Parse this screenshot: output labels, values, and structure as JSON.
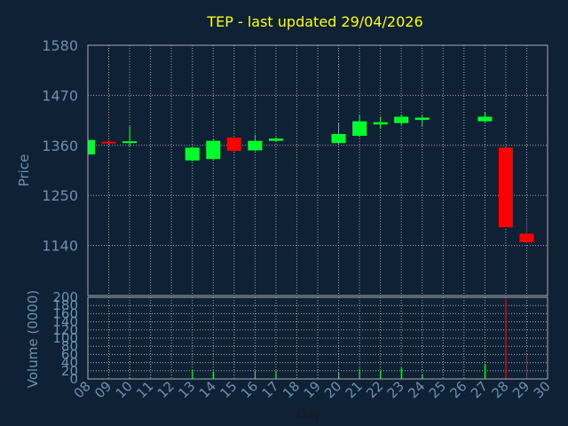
{
  "chart_data": {
    "type": "candlestick",
    "title": "TEP - last updated 29/04/2026",
    "xlabel": "Day",
    "categories": [
      "08",
      "09",
      "10",
      "11",
      "12",
      "13",
      "14",
      "15",
      "16",
      "17",
      "18",
      "19",
      "20",
      "21",
      "22",
      "23",
      "24",
      "25",
      "26",
      "27",
      "28",
      "29",
      "30"
    ],
    "price": {
      "ylabel": "Price",
      "ylim": [
        1030,
        1580
      ],
      "yticks": [
        1580,
        1470,
        1360,
        1250,
        1140
      ],
      "candles": [
        {
          "day": "08",
          "open": 1340,
          "high": 1373,
          "low": 1338,
          "close": 1372
        },
        {
          "day": "09",
          "open": 1368,
          "high": 1371,
          "low": 1364,
          "close": 1366
        },
        {
          "day": "10",
          "open": 1366,
          "high": 1402,
          "low": 1358,
          "close": 1369
        },
        {
          "day": "13",
          "open": 1327,
          "high": 1357,
          "low": 1325,
          "close": 1355
        },
        {
          "day": "14",
          "open": 1330,
          "high": 1373,
          "low": 1328,
          "close": 1370
        },
        {
          "day": "15",
          "open": 1377,
          "high": 1378,
          "low": 1347,
          "close": 1348
        },
        {
          "day": "16",
          "open": 1349,
          "high": 1383,
          "low": 1347,
          "close": 1370
        },
        {
          "day": "17",
          "open": 1370,
          "high": 1378,
          "low": 1368,
          "close": 1375
        },
        {
          "day": "20",
          "open": 1365,
          "high": 1410,
          "low": 1362,
          "close": 1385
        },
        {
          "day": "21",
          "open": 1381,
          "high": 1428,
          "low": 1378,
          "close": 1413
        },
        {
          "day": "22",
          "open": 1406,
          "high": 1423,
          "low": 1397,
          "close": 1411
        },
        {
          "day": "23",
          "open": 1409,
          "high": 1428,
          "low": 1405,
          "close": 1423
        },
        {
          "day": "24",
          "open": 1416,
          "high": 1426,
          "low": 1401,
          "close": 1421
        },
        {
          "day": "27",
          "open": 1413,
          "high": 1432,
          "low": 1411,
          "close": 1423
        },
        {
          "day": "28",
          "open": 1355,
          "high": 1356,
          "low": 1180,
          "close": 1180
        },
        {
          "day": "29",
          "open": 1166,
          "high": 1197,
          "low": 1145,
          "close": 1147
        }
      ]
    },
    "volume": {
      "ylabel": "Volume (0000)",
      "ylim": [
        0,
        200
      ],
      "yticks": [
        200,
        180,
        160,
        140,
        120,
        100,
        80,
        60,
        40,
        20,
        0
      ],
      "values": [
        {
          "day": "09",
          "value": 3
        },
        {
          "day": "10",
          "value": 2
        },
        {
          "day": "13",
          "value": 22
        },
        {
          "day": "14",
          "value": 18
        },
        {
          "day": "15",
          "value": 5
        },
        {
          "day": "16",
          "value": 20
        },
        {
          "day": "17",
          "value": 20
        },
        {
          "day": "20",
          "value": 15
        },
        {
          "day": "21",
          "value": 25
        },
        {
          "day": "22",
          "value": 20
        },
        {
          "day": "23",
          "value": 27
        },
        {
          "day": "24",
          "value": 12
        },
        {
          "day": "27",
          "value": 35
        },
        {
          "day": "28",
          "value": 195
        },
        {
          "day": "29",
          "value": 60
        }
      ]
    },
    "grid": true,
    "colors": {
      "background": "#0f2135",
      "up": "#00ff2a",
      "down": "#ff0000",
      "title": "#ffff00",
      "axis_text": "#6f8fb0",
      "grid": "#aaaaaa"
    }
  }
}
